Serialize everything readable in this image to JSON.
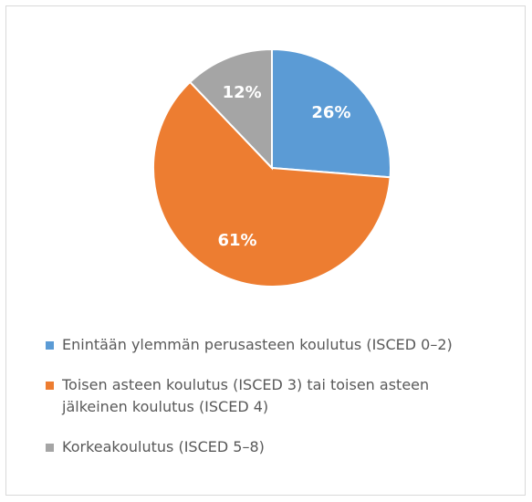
{
  "chart_data": {
    "type": "pie",
    "categories": [
      "Enintään ylemmän perusasteen koulutus (ISCED 0–2)",
      "Toisen asteen koulutus (ISCED 3) tai toisen asteen jälkeinen koulutus (ISCED 4)",
      "Korkeakoulutus (ISCED 5–8)"
    ],
    "values": [
      26,
      61,
      12
    ],
    "value_labels": [
      "26%",
      "61%",
      "12%"
    ],
    "colors": [
      "#5b9bd5",
      "#ed7d31",
      "#a5a5a5"
    ]
  }
}
